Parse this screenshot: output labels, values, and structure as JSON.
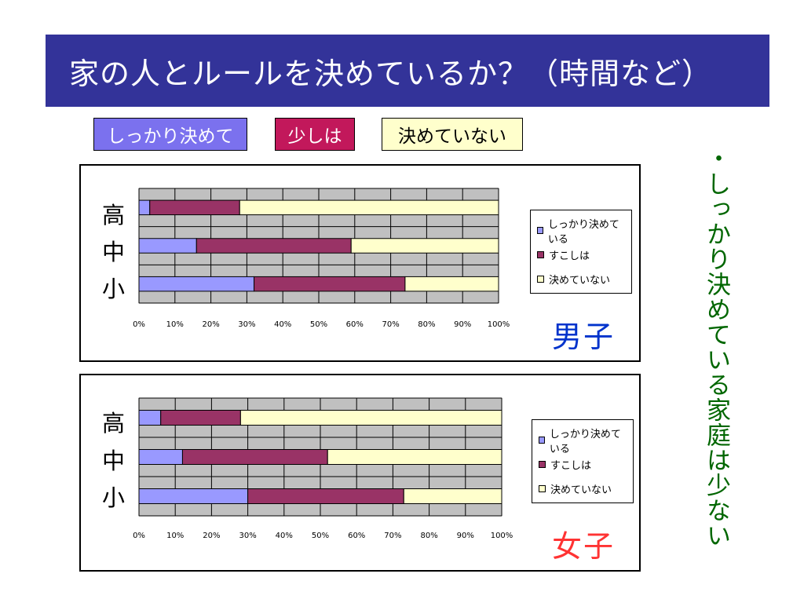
{
  "title": "家の人とルールを決めているか？（時間など）",
  "legend_boxes": [
    "しっかり決めて",
    "少しは",
    "決めていない"
  ],
  "side_note": "・しっかり決めている家庭は少ない",
  "colors": {
    "firmly": "#9999ff",
    "a_little": "#993366",
    "not_set": "#ffffcc",
    "plot_bg": "#c0c0c0",
    "title_bg": "#333399",
    "note": "#006600",
    "boys": "#0033cc",
    "girls": "#ff3333"
  },
  "chart_data": [
    {
      "type": "bar",
      "orientation": "horizontal",
      "stacked": "percent",
      "panel_label": "男子",
      "categories": [
        "高",
        "中",
        "小"
      ],
      "series": [
        {
          "name": "しっかり決めている",
          "values": [
            3,
            16,
            32
          ]
        },
        {
          "name": "すこしは",
          "values": [
            25,
            43,
            42
          ]
        },
        {
          "name": "決めていない",
          "values": [
            72,
            41,
            26
          ]
        }
      ],
      "xlim": [
        0,
        100
      ],
      "xticks": [
        "0%",
        "10%",
        "20%",
        "30%",
        "40%",
        "50%",
        "60%",
        "70%",
        "80%",
        "90%",
        "100%"
      ],
      "grid": true,
      "legend": "right"
    },
    {
      "type": "bar",
      "orientation": "horizontal",
      "stacked": "percent",
      "panel_label": "女子",
      "categories": [
        "高",
        "中",
        "小"
      ],
      "series": [
        {
          "name": "しっかり決めている",
          "values": [
            6,
            12,
            30
          ]
        },
        {
          "name": "すこしは",
          "values": [
            22,
            40,
            43
          ]
        },
        {
          "name": "決めていない",
          "values": [
            72,
            48,
            27
          ]
        }
      ],
      "xlim": [
        0,
        100
      ],
      "xticks": [
        "0%",
        "10%",
        "20%",
        "30%",
        "40%",
        "50%",
        "60%",
        "70%",
        "80%",
        "90%",
        "100%"
      ],
      "grid": true,
      "legend": "right"
    }
  ]
}
